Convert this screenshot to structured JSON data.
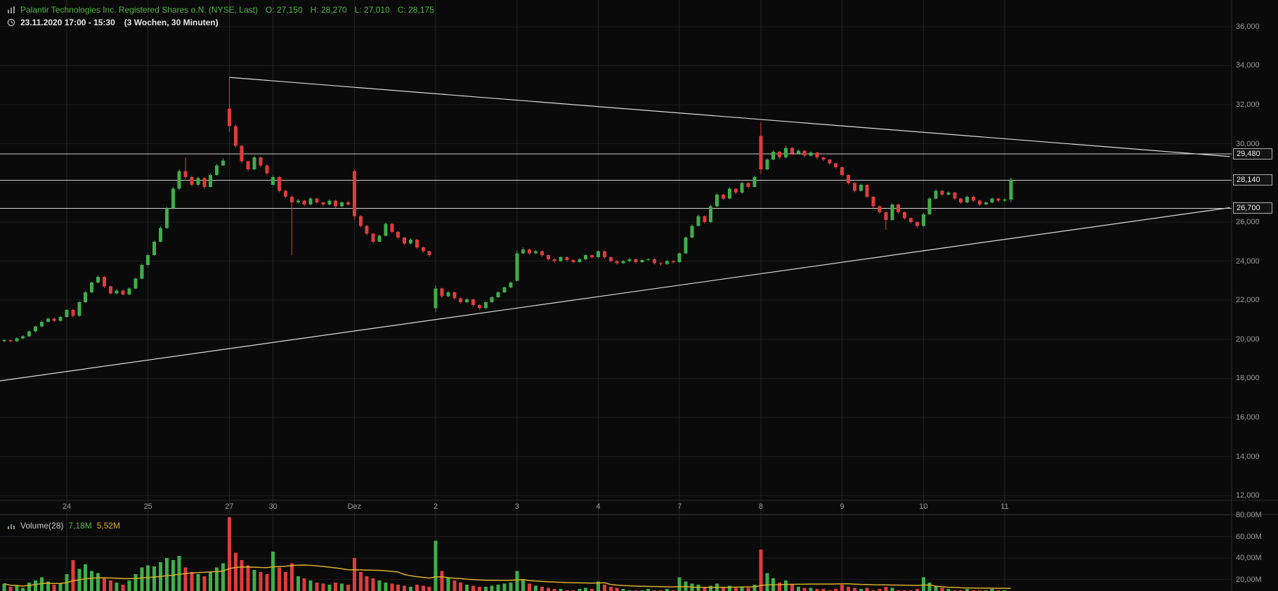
{
  "header": {
    "title": "Palantir Technologies Inc. Registered Shares o.N. (NYSE, Last)",
    "ohlc": [
      "O: 27,150",
      "H: 28,270",
      "L: 27,010",
      "C: 28,175"
    ],
    "date_range": "23.11.2020 17:00 - 15:30",
    "interval": "(3 Wochen, 30 Minuten)"
  },
  "volume_header": {
    "label": "Volume(28)",
    "current": "7,18M",
    "ma": "5,52M"
  },
  "colors": {
    "bg": "#0a0a0a",
    "up": "#3fae4a",
    "down": "#e03c3c",
    "grid_h": "#1c1c1c",
    "grid_v": "#222222",
    "divider": "#2a2a2a",
    "trend_line": "#dcdcdc",
    "level_line": "#cfcfcf",
    "ma_line": "#d9af2b",
    "title_green": "#53b545",
    "axis_text": "#9c9c9c"
  },
  "chart_data": {
    "type": "candlestick",
    "title": "Palantir Technologies Inc. (NYSE) - 30 minute bars, 3 weeks",
    "legend_position": "top-left",
    "grid": true,
    "price_axis": [
      {
        "value": 36000,
        "label": "36,000"
      },
      {
        "value": 34000,
        "label": "34,000"
      },
      {
        "value": 32000,
        "label": "32,000"
      },
      {
        "value": 30000,
        "label": "30,000"
      },
      {
        "value": 28000,
        "label": "28,000"
      },
      {
        "value": 26000,
        "label": "26,000"
      },
      {
        "value": 24000,
        "label": "24,000"
      },
      {
        "value": 22000,
        "label": "22,000"
      },
      {
        "value": 20000,
        "label": "20,000"
      },
      {
        "value": 18000,
        "label": "18,000"
      },
      {
        "value": 16000,
        "label": "16,000"
      },
      {
        "value": 14000,
        "label": "14,000"
      },
      {
        "value": 12000,
        "label": "12,000"
      }
    ],
    "volume_axis": [
      {
        "value": 80,
        "label": "80,00M"
      },
      {
        "value": 60,
        "label": "60,00M"
      },
      {
        "value": 40,
        "label": "40,00M"
      },
      {
        "value": 20,
        "label": "20,00M"
      }
    ],
    "day_ticks": [
      {
        "bar": 10,
        "label": "24"
      },
      {
        "bar": 23,
        "label": "25"
      },
      {
        "bar": 36,
        "label": "27"
      },
      {
        "bar": 43,
        "label": "30"
      },
      {
        "bar": 56,
        "label": "Dez"
      },
      {
        "bar": 69,
        "label": "2"
      },
      {
        "bar": 82,
        "label": "3"
      },
      {
        "bar": 95,
        "label": "4"
      },
      {
        "bar": 108,
        "label": "7"
      },
      {
        "bar": 121,
        "label": "8"
      },
      {
        "bar": 134,
        "label": "9"
      },
      {
        "bar": 147,
        "label": "10"
      },
      {
        "bar": 160,
        "label": "11"
      }
    ],
    "levels": [
      {
        "price": 29480,
        "label": "29,480"
      },
      {
        "price": 28140,
        "label": "28,140"
      },
      {
        "price": 26700,
        "label": "26,700"
      }
    ],
    "trendlines": [
      {
        "b1": 36,
        "p1": 33400,
        "b2": 196,
        "p2": 29350
      },
      {
        "b1": -0.7,
        "p1": 17870,
        "b2": 196,
        "p2": 26735
      }
    ],
    "volume_ma_period": 28,
    "candles": [
      [
        19900,
        20010,
        19860,
        19950
      ],
      [
        19950,
        20000,
        19840,
        19900
      ],
      [
        19900,
        20100,
        19860,
        20050
      ],
      [
        20050,
        20210,
        20000,
        20150
      ],
      [
        20150,
        20450,
        20110,
        20400
      ],
      [
        20400,
        20700,
        20350,
        20650
      ],
      [
        20650,
        20960,
        20600,
        20900
      ],
      [
        20900,
        21120,
        20860,
        21050
      ],
      [
        21050,
        21100,
        20880,
        20950
      ],
      [
        20950,
        21200,
        20900,
        21150
      ],
      [
        21150,
        21550,
        21100,
        21500
      ],
      [
        21500,
        21560,
        21120,
        21200
      ],
      [
        21200,
        21950,
        21150,
        21900
      ],
      [
        21900,
        22460,
        21850,
        22400
      ],
      [
        22400,
        22960,
        22350,
        22900
      ],
      [
        22900,
        23280,
        22850,
        23200
      ],
      [
        23200,
        23250,
        22620,
        22700
      ],
      [
        22700,
        22740,
        22280,
        22350
      ],
      [
        22350,
        22570,
        22300,
        22500
      ],
      [
        22500,
        22540,
        22230,
        22300
      ],
      [
        22300,
        22660,
        22260,
        22600
      ],
      [
        22600,
        23160,
        22560,
        23100
      ],
      [
        23100,
        23870,
        23060,
        23800
      ],
      [
        23800,
        24360,
        23760,
        24300
      ],
      [
        24300,
        25060,
        24260,
        25000
      ],
      [
        25000,
        25780,
        24950,
        25700
      ],
      [
        25700,
        26780,
        25650,
        26700
      ],
      [
        26700,
        27800,
        26650,
        27700
      ],
      [
        27700,
        28700,
        27640,
        28600
      ],
      [
        28600,
        29300,
        28220,
        28300
      ],
      [
        28300,
        28380,
        27820,
        27900
      ],
      [
        27900,
        28320,
        27850,
        28250
      ],
      [
        28250,
        28300,
        27700,
        27800
      ],
      [
        27800,
        28470,
        27760,
        28400
      ],
      [
        28400,
        28980,
        28360,
        28900
      ],
      [
        28900,
        29260,
        28860,
        29150
      ],
      [
        31800,
        33400,
        30600,
        30900
      ],
      [
        30900,
        31000,
        29800,
        29900
      ],
      [
        29900,
        29960,
        29000,
        29100
      ],
      [
        29100,
        29150,
        28600,
        28700
      ],
      [
        28700,
        29380,
        28650,
        29300
      ],
      [
        29300,
        29350,
        28800,
        28900
      ],
      [
        28900,
        28950,
        28400,
        28500
      ],
      [
        27900,
        28380,
        27850,
        28300
      ],
      [
        28300,
        28350,
        27520,
        27600
      ],
      [
        27600,
        27650,
        27220,
        27300
      ],
      [
        27300,
        27360,
        24300,
        27000
      ],
      [
        27000,
        27180,
        26950,
        27100
      ],
      [
        27100,
        27140,
        26820,
        26900
      ],
      [
        26900,
        27260,
        26860,
        27200
      ],
      [
        27200,
        27240,
        26930,
        27000
      ],
      [
        27000,
        27050,
        26830,
        26900
      ],
      [
        26900,
        27160,
        26860,
        27100
      ],
      [
        27100,
        27150,
        26720,
        26800
      ],
      [
        26800,
        27060,
        26760,
        27000
      ],
      [
        27000,
        27080,
        26840,
        26900
      ],
      [
        28600,
        28700,
        26100,
        26300
      ],
      [
        26300,
        26350,
        25720,
        25800
      ],
      [
        25800,
        25850,
        25320,
        25400
      ],
      [
        25400,
        25440,
        24900,
        25000
      ],
      [
        25000,
        25370,
        24960,
        25300
      ],
      [
        25300,
        25960,
        25260,
        25900
      ],
      [
        25900,
        25940,
        25420,
        25500
      ],
      [
        25500,
        25550,
        25120,
        25200
      ],
      [
        25200,
        25240,
        24820,
        24900
      ],
      [
        24900,
        25170,
        24860,
        25100
      ],
      [
        25100,
        25140,
        24620,
        24700
      ],
      [
        24700,
        24750,
        24420,
        24500
      ],
      [
        24500,
        24540,
        24220,
        24300
      ],
      [
        21600,
        22750,
        21400,
        22600
      ],
      [
        22600,
        22640,
        22120,
        22200
      ],
      [
        22200,
        22470,
        22150,
        22400
      ],
      [
        22400,
        22440,
        22020,
        22100
      ],
      [
        22100,
        22150,
        21820,
        21900
      ],
      [
        21900,
        22120,
        21850,
        22050
      ],
      [
        22050,
        22090,
        21670,
        21750
      ],
      [
        21750,
        21800,
        21500,
        21600
      ],
      [
        21600,
        21960,
        21560,
        21900
      ],
      [
        21900,
        22210,
        21860,
        22150
      ],
      [
        22150,
        22460,
        22110,
        22400
      ],
      [
        22400,
        22710,
        22360,
        22650
      ],
      [
        22650,
        22960,
        22610,
        22900
      ],
      [
        23000,
        24550,
        22950,
        24400
      ],
      [
        24400,
        24700,
        24350,
        24600
      ],
      [
        24600,
        24650,
        24320,
        24400
      ],
      [
        24400,
        24570,
        24360,
        24500
      ],
      [
        24500,
        24540,
        24220,
        24300
      ],
      [
        24300,
        24340,
        24020,
        24100
      ],
      [
        24100,
        24150,
        23920,
        24000
      ],
      [
        24000,
        24260,
        23960,
        24200
      ],
      [
        24200,
        24240,
        23970,
        24050
      ],
      [
        24050,
        24100,
        23880,
        23950
      ],
      [
        23950,
        24160,
        23910,
        24100
      ],
      [
        24100,
        24360,
        24060,
        24300
      ],
      [
        24300,
        24340,
        24120,
        24200
      ],
      [
        24200,
        24560,
        24160,
        24500
      ],
      [
        24500,
        24540,
        24120,
        24200
      ],
      [
        24200,
        24240,
        23920,
        24000
      ],
      [
        24000,
        24050,
        23820,
        23900
      ],
      [
        23900,
        24060,
        23860,
        24000
      ],
      [
        24000,
        24160,
        23960,
        24100
      ],
      [
        24100,
        24140,
        23870,
        23950
      ],
      [
        23950,
        24110,
        23910,
        24050
      ],
      [
        24050,
        24160,
        24010,
        24100
      ],
      [
        24100,
        24140,
        23820,
        23900
      ],
      [
        23900,
        23950,
        23770,
        23850
      ],
      [
        23850,
        24060,
        23810,
        24000
      ],
      [
        24000,
        24050,
        23870,
        23950
      ],
      [
        23950,
        24460,
        23900,
        24400
      ],
      [
        24400,
        25270,
        24360,
        25200
      ],
      [
        25200,
        25870,
        25160,
        25800
      ],
      [
        25800,
        26380,
        25760,
        26300
      ],
      [
        26300,
        26340,
        25920,
        26000
      ],
      [
        26000,
        26880,
        25960,
        26800
      ],
      [
        26800,
        27480,
        26760,
        27400
      ],
      [
        27400,
        27440,
        27120,
        27200
      ],
      [
        27200,
        27770,
        27160,
        27700
      ],
      [
        27700,
        27740,
        27420,
        27500
      ],
      [
        27500,
        28070,
        27460,
        28000
      ],
      [
        28000,
        28040,
        27720,
        27800
      ],
      [
        27800,
        28370,
        27760,
        28300
      ],
      [
        30400,
        31100,
        28450,
        28700
      ],
      [
        28700,
        29270,
        28650,
        29200
      ],
      [
        29200,
        29680,
        29160,
        29600
      ],
      [
        29600,
        29640,
        29220,
        29300
      ],
      [
        29300,
        29900,
        29260,
        29800
      ],
      [
        29800,
        29840,
        29420,
        29500
      ],
      [
        29500,
        29720,
        29460,
        29650
      ],
      [
        29650,
        29690,
        29320,
        29400
      ],
      [
        29400,
        29610,
        29360,
        29550
      ],
      [
        29550,
        29590,
        29220,
        29300
      ],
      [
        29300,
        29350,
        29120,
        29200
      ],
      [
        29200,
        29240,
        28920,
        29000
      ],
      [
        29000,
        29050,
        28720,
        28800
      ],
      [
        28800,
        28840,
        28320,
        28400
      ],
      [
        28400,
        28440,
        27920,
        28000
      ],
      [
        28000,
        28040,
        27520,
        27600
      ],
      [
        27600,
        27960,
        27560,
        27900
      ],
      [
        27900,
        27940,
        27220,
        27300
      ],
      [
        27300,
        27340,
        26720,
        26800
      ],
      [
        26800,
        26850,
        26420,
        26500
      ],
      [
        26500,
        26550,
        25600,
        26100
      ],
      [
        26100,
        26960,
        26060,
        26900
      ],
      [
        26900,
        26940,
        26420,
        26500
      ],
      [
        26500,
        26540,
        26120,
        26200
      ],
      [
        26200,
        26250,
        25920,
        26000
      ],
      [
        26000,
        26040,
        25680,
        25800
      ],
      [
        25800,
        26470,
        25760,
        26400
      ],
      [
        26400,
        27270,
        26360,
        27200
      ],
      [
        27200,
        27680,
        27160,
        27600
      ],
      [
        27600,
        27640,
        27320,
        27400
      ],
      [
        27400,
        27570,
        27360,
        27500
      ],
      [
        27500,
        27540,
        27120,
        27200
      ],
      [
        27200,
        27240,
        26920,
        27000
      ],
      [
        27000,
        27360,
        26960,
        27300
      ],
      [
        27300,
        27340,
        27020,
        27100
      ],
      [
        27100,
        27150,
        26820,
        26900
      ],
      [
        26900,
        27060,
        26860,
        27000
      ],
      [
        27000,
        27260,
        26960,
        27200
      ],
      [
        27200,
        27240,
        27010,
        27100
      ],
      [
        27100,
        27250,
        27000,
        27150
      ],
      [
        27150,
        28270,
        27010,
        28175
      ]
    ],
    "volumes": [
      16,
      13,
      14,
      12,
      17,
      19,
      22,
      18,
      15,
      16,
      25,
      38,
      30,
      34,
      28,
      26,
      22,
      19,
      17,
      15,
      19,
      25,
      31,
      33,
      32,
      36,
      40,
      38,
      42,
      31,
      27,
      25,
      23,
      27,
      31,
      35,
      78,
      45,
      38,
      33,
      29,
      27,
      25,
      46,
      31,
      27,
      35,
      23,
      21,
      19,
      17,
      16,
      15,
      17,
      16,
      15,
      40,
      27,
      23,
      21,
      19,
      17,
      16,
      15,
      14,
      13,
      15,
      14,
      13,
      56,
      28,
      22,
      19,
      17,
      15,
      14,
      13,
      13,
      14,
      15,
      16,
      17,
      28,
      20,
      16,
      14,
      13,
      12,
      11,
      11,
      10,
      10,
      11,
      12,
      11,
      18,
      15,
      13,
      12,
      11,
      10,
      10,
      10,
      11,
      10,
      10,
      11,
      10,
      22,
      18,
      16,
      15,
      13,
      14,
      16,
      13,
      14,
      12,
      13,
      12,
      15,
      48,
      26,
      21,
      17,
      19,
      15,
      13,
      12,
      12,
      11,
      11,
      10,
      11,
      15,
      13,
      12,
      11,
      12,
      10,
      11,
      13,
      12,
      10,
      10,
      10,
      11,
      22,
      17,
      14,
      12,
      11,
      10,
      10,
      11,
      10,
      10,
      10,
      11,
      10,
      10,
      7.18
    ]
  }
}
